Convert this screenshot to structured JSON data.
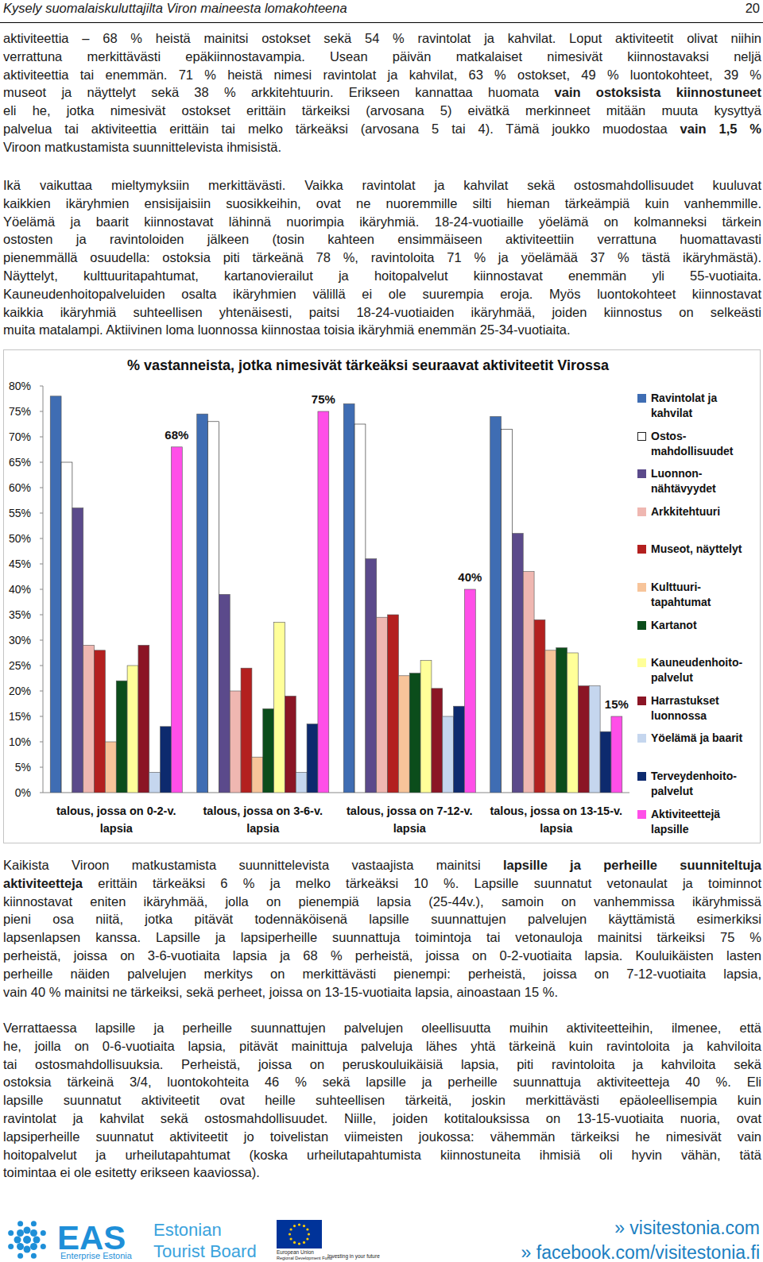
{
  "header": {
    "title": "Kysely suomalaiskuluttajilta Viron maineesta lomakohteena",
    "page": "20"
  },
  "paragraphs_top": [
    [
      "aktiviteettia – 68 % heistä mainitsi ostokset sekä 54 % ravintolat ja kahvilat. Loput aktiviteetit olivat niihin",
      "verrattuna merkittävästi epäkiinnostavampia. Usean päivän matkalaiset nimesivät kiinnostavaksi neljä",
      "aktiviteettia tai enemmän. 71 % heistä nimesi ravintolat ja kahvilat, 63 % ostokset, 49 % luontokohteet, 39 %",
      [
        "museot ja näyttelyt sekä 38 % arkkitehtuurin. Erikseen kannattaa huomata ",
        {
          "bold": "vain ostoksista kiinnostuneet"
        }
      ],
      "eli he, jotka nimesivät ostokset erittäin tärkeiksi (arvosana 5) eivätkä merkinneet mitään muuta kysyttyä",
      [
        "palvelua tai aktiviteettia erittäin tai melko tärkeäksi (arvosana 5 tai 4). Tämä joukko muodostaa ",
        {
          "bold": "vain 1,5 %"
        }
      ],
      "Viroon matkustamista suunnittelevista ihmisistä."
    ],
    [
      "Ikä vaikuttaa mieltymyksiin merkittävästi. Vaikka ravintolat ja kahvilat sekä ostosmahdollisuudet kuuluvat",
      "kaikkien ikäryhmien ensisijaisiin suosikkeihin, ovat ne nuoremmille silti hieman tärkeämpiä kuin vanhemmille.",
      "Yöelämä ja baarit kiinnostavat lähinnä nuorimpia ikäryhmiä. 18-24-vuotiaille yöelämä on kolmanneksi tärkein",
      "ostosten ja ravintoloiden jälkeen (tosin kahteen ensimmäiseen aktiviteettiin verrattuna huomattavasti",
      "pienemmällä osuudella: ostoksia piti tärkeänä 78 %, ravintoloita 71 % ja yöelämää 37 % tästä ikäryhmästä).",
      "Näyttelyt, kulttuuritapahtumat, kartanovierailut ja hoitopalvelut kiinnostavat enemmän yli 55-vuotiaita.",
      "Kauneudenhoitopalveluiden osalta ikäryhmien välillä ei ole suurempia eroja. Myös luontokohteet kiinnostavat",
      "kaikkia ikäryhmiä suhteellisen yhtenäisesti, paitsi 18-24-vuotiaiden ikäryhmää, joiden kiinnostus on selkeästi",
      "muita matalampi. Aktiivinen loma luonnossa kiinnostaa toisia ikäryhmiä enemmän 25-34-vuotiaita."
    ]
  ],
  "chart_data": {
    "type": "bar",
    "title": "% vastanneista, jotka nimesivät tärkeäksi seuraavat aktiviteetit Virossa",
    "categories": [
      "talous, jossa on 0-2-v. lapsia",
      "talous, jossa on 3-6-v. lapsia",
      "talous, jossa on 7-12-v. lapsia",
      "talous, jossa on 13-15-v. lapsia"
    ],
    "series": [
      {
        "name": "Ravintolat ja kahvilat",
        "color": "#3f6db3",
        "values": [
          78,
          74.5,
          76.5,
          74
        ]
      },
      {
        "name": "Ostos-mahdollisuudet",
        "color": "#ffffff",
        "values": [
          65,
          73,
          72.5,
          71.5
        ]
      },
      {
        "name": "Luonnon-nähtävyydet",
        "color": "#5b4a8b",
        "values": [
          56,
          39,
          46,
          51
        ]
      },
      {
        "name": "Arkkitehtuuri",
        "color": "#efb7b1",
        "values": [
          29,
          20,
          34.5,
          43.5
        ]
      },
      {
        "name": "Museot, näyttelyt",
        "color": "#b3201f",
        "values": [
          28,
          24.5,
          35,
          34
        ]
      },
      {
        "name": "Kulttuuri-tapahtumat",
        "color": "#f7c49a",
        "values": [
          10,
          7,
          23,
          28
        ]
      },
      {
        "name": "Kartanot",
        "color": "#0b4d1b",
        "values": [
          22,
          16.5,
          23.5,
          28.5
        ]
      },
      {
        "name": "Kauneudenhoito-palvelut",
        "color": "#ffff99",
        "values": [
          25,
          33.5,
          26,
          27.5
        ]
      },
      {
        "name": "Harrastukset luonnossa",
        "color": "#8b1525",
        "values": [
          29,
          19,
          20.5,
          21
        ]
      },
      {
        "name": "Yöelämä ja baarit",
        "color": "#c5d6ee",
        "values": [
          4,
          4,
          15,
          21
        ]
      },
      {
        "name": "Terveydenhoito-palvelut",
        "color": "#0d2a6e",
        "values": [
          13,
          13.5,
          17,
          12
        ]
      },
      {
        "name": "Aktiviteettejä lapsille",
        "color": "#ff4fe8",
        "values": [
          68,
          75,
          40,
          15
        ],
        "value_labels": [
          "68%",
          "75%",
          "40%",
          "15%"
        ]
      }
    ],
    "ylim": [
      0,
      80
    ],
    "yticks": [
      {
        "value": 0,
        "label": "0%"
      },
      {
        "value": 5,
        "label": "5%"
      },
      {
        "value": 10,
        "label": "10%"
      },
      {
        "value": 15,
        "label": "15%"
      },
      {
        "value": 20,
        "label": "20%"
      },
      {
        "value": 25,
        "label": "25%"
      },
      {
        "value": 30,
        "label": "30%"
      },
      {
        "value": 35,
        "label": "35%"
      },
      {
        "value": 40,
        "label": "40%"
      },
      {
        "value": 45,
        "label": "45%"
      },
      {
        "value": 50,
        "label": "50%"
      },
      {
        "value": 55,
        "label": "55%"
      },
      {
        "value": 60,
        "label": "60%"
      },
      {
        "value": 65,
        "label": "65%"
      },
      {
        "value": 70,
        "label": "70%"
      },
      {
        "value": 75,
        "label": "75%"
      },
      {
        "value": 80,
        "label": "80%"
      }
    ],
    "grid": false,
    "legend": "right"
  },
  "paragraphs_bottom": [
    [
      [
        "Kaikista Viroon matkustamista suunnittelevista vastaajista mainitsi ",
        {
          "bold": "lapsille ja perheille suunniteltuja"
        }
      ],
      [
        {
          "bold": "aktiviteetteja"
        },
        " erittäin tärkeäksi 6 % ja melko tärkeäksi 10 %. Lapsille suunnatut vetonaulat ja toiminnot"
      ],
      "kiinnostavat eniten ikäryhmää, jolla on pienempiä lapsia (25-44v.), samoin on vanhemmissa ikäryhmissä",
      "pieni osa niitä, jotka pitävät todennäköisenä lapsille suunnattujen palvelujen käyttämistä esimerkiksi",
      "lapsenlapsen kanssa. Lapsille ja lapsiperheille suunnattuja toimintoja tai vetonauloja mainitsi tärkeiksi 75 %",
      "perheistä, joissa on 3-6-vuotiaita lapsia ja 68 % perheistä, joissa on 0-2-vuotiaita lapsia. Kouluikäisten lasten",
      "perheille näiden palvelujen merkitys on merkittävästi pienempi: perheistä, joissa on 7-12-vuotiaita lapsia,",
      "vain 40 % mainitsi ne tärkeiksi, sekä perheet, joissa on 13-15-vuotiaita lapsia, ainoastaan 15 %."
    ],
    [
      "Verrattaessa lapsille ja perheille suunnattujen palvelujen oleellisuutta muihin aktiviteetteihin, ilmenee, että",
      "he, joilla on 0-6-vuotiaita lapsia, pitävät mainittuja palveluja lähes yhtä tärkeinä kuin ravintoloita ja kahviloita",
      "tai ostosmahdollisuuksia. Perheistä, joissa on peruskouluikäisiä lapsia, piti ravintoloita ja kahviloita sekä",
      "ostoksia tärkeinä 3/4, luontokohteita 46 % sekä lapsille ja perheille suunnattuja aktiviteetteja 40 %. Eli",
      "lapsille suunnatut aktiviteetit ovat heille suhteellisen tärkeitä, joskin merkittävästi epäoleellisempia kuin",
      "ravintolat ja kahvilat sekä ostosmahdollisuudet. Niille, joiden kotitalouksissa on 13-15-vuotiaita nuoria, ovat",
      "lapsiperheille suunnatut aktiviteetit jo toivelistan viimeisten joukossa: vähemmän tärkeiksi he nimesivät vain",
      "hoitopalvelut ja urheilutapahtumat (koska urheilutapahtumista kiinnostuneita ihmisiä oli hyvin vähän, tätä",
      "toimintaa ei ole esitetty erikseen kaaviossa)."
    ]
  ],
  "footer": {
    "eas": "EAS",
    "eas_sub": "Enterprise Estonia",
    "tourist_board": [
      "Estonian",
      "Tourist Board"
    ],
    "eu": [
      "European Union",
      "Regional Development Fund"
    ],
    "eu_slogan": "Investing in your future",
    "links": [
      "» visitestonia.com",
      "» facebook.com/visitestonia.fi"
    ]
  }
}
